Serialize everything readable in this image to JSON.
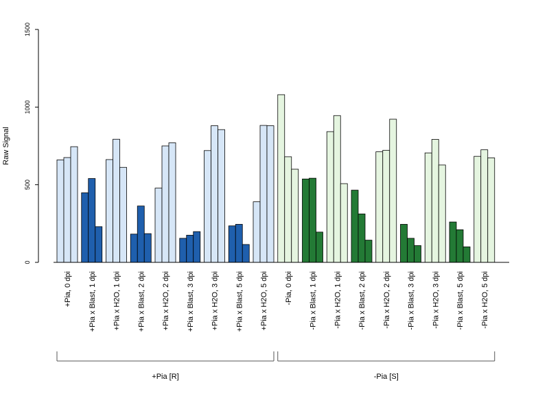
{
  "chart_data": {
    "type": "bar",
    "title": "",
    "xlabel": "",
    "ylabel": "Raw Signal",
    "ylim": [
      0,
      1500
    ],
    "yticks": [
      0,
      500,
      1000,
      1500
    ],
    "grid": false,
    "legend": "none",
    "categories": [
      "+Pia, 0 dpi",
      "+Pia x Blast, 1 dpi",
      "+Pia x H2O, 1 dpi",
      "+Pia x Blast, 2 dpi",
      "+Pia x H2O, 2 dpi",
      "+Pia x Blast, 3 dpi",
      "+Pia x H2O, 3 dpi",
      "+Pia x Blast, 5 dpi",
      "+Pia x H2O, 5 dpi",
      "-Pia, 0 dpi",
      "-Pia x Blast, 1 dpi",
      "-Pia x H2O, 1 dpi",
      "-Pia x Blast, 2 dpi",
      "-Pia x H2O, 2 dpi",
      "-Pia x Blast, 3 dpi",
      "-Pia x H2O, 3 dpi",
      "-Pia x Blast, 5 dpi",
      "-Pia x H2O, 5 dpi"
    ],
    "replicates": [
      [
        660,
        675,
        745
      ],
      [
        448,
        540,
        230
      ],
      [
        662,
        793,
        612
      ],
      [
        182,
        363,
        185
      ],
      [
        478,
        750,
        770
      ],
      [
        155,
        175,
        198
      ],
      [
        720,
        880,
        855
      ],
      [
        235,
        245,
        115
      ],
      [
        390,
        882,
        880
      ],
      [
        1080,
        680,
        600
      ],
      [
        537,
        542,
        195
      ],
      [
        842,
        945,
        507
      ],
      [
        465,
        312,
        143
      ],
      [
        712,
        722,
        922
      ],
      [
        245,
        155,
        108
      ],
      [
        705,
        792,
        627
      ],
      [
        260,
        210,
        100
      ],
      [
        683,
        725,
        673
      ]
    ],
    "bar_colors": [
      "#d6e6f7",
      "#1f5fad",
      "#d6e6f7",
      "#1f5fad",
      "#d6e6f7",
      "#1f5fad",
      "#d6e6f7",
      "#1f5fad",
      "#d6e6f7",
      "#e5f5e0",
      "#237a35",
      "#e5f5e0",
      "#237a35",
      "#e5f5e0",
      "#237a35",
      "#e5f5e0",
      "#237a35",
      "#e5f5e0"
    ],
    "groups": [
      {
        "label": "+Pia [R]",
        "start": 0,
        "end": 8
      },
      {
        "label": "-Pia [S]",
        "start": 9,
        "end": 17
      }
    ]
  }
}
